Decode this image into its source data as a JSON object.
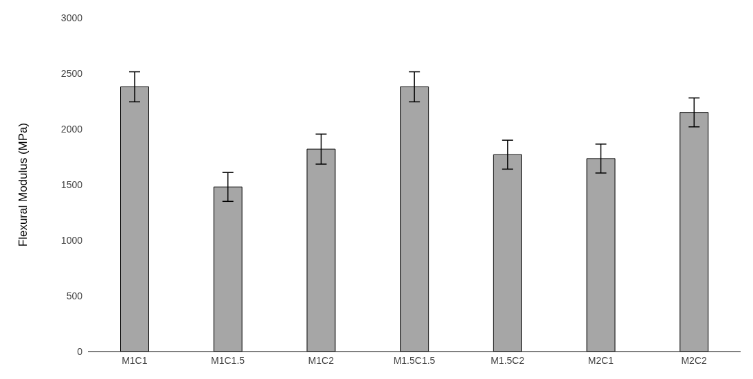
{
  "chart_data": {
    "type": "bar",
    "ylabel": "Flexural Modulus (MPa)",
    "categories": [
      "M1C1",
      "M1C1.5",
      "M1C2",
      "M1.5C1.5",
      "M1.5C2",
      "M2C1",
      "M2C2"
    ],
    "values": [
      2380,
      1480,
      1820,
      2380,
      1770,
      1735,
      2150
    ],
    "errors": [
      135,
      130,
      135,
      135,
      130,
      130,
      130
    ],
    "color": "#a6a6a6",
    "ylim": [
      0,
      3000
    ],
    "yticks": [
      0,
      500,
      1000,
      1500,
      2000,
      2500,
      3000
    ],
    "grid": false,
    "legend": false
  }
}
